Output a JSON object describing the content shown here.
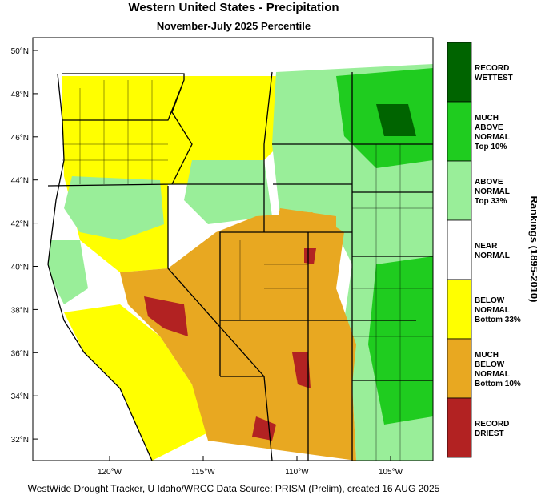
{
  "title": "Western United States - Precipitation",
  "subtitle": "November-July 2025 Percentile",
  "lat_labels": [
    "50°N",
    "48°N",
    "46°N",
    "44°N",
    "42°N",
    "40°N",
    "38°N",
    "36°N",
    "34°N",
    "32°N"
  ],
  "lon_labels": [
    "120°W",
    "115°W",
    "110°W",
    "105°W"
  ],
  "legend": {
    "title": "Rankings (1895-2010)",
    "items": [
      {
        "color": "#006400",
        "label": [
          "RECORD",
          "WETTEST"
        ]
      },
      {
        "color": "#1fcc1f",
        "label": [
          "MUCH",
          "ABOVE",
          "NORMAL",
          "Top 10%"
        ]
      },
      {
        "color": "#99ee99",
        "label": [
          "ABOVE",
          "NORMAL",
          "Top 33%"
        ]
      },
      {
        "color": "#ffffff",
        "label": [
          "NEAR",
          "NORMAL"
        ]
      },
      {
        "color": "#ffff00",
        "label": [
          "BELOW",
          "NORMAL",
          "Bottom 33%"
        ]
      },
      {
        "color": "#e8a821",
        "label": [
          "MUCH",
          "BELOW",
          "NORMAL",
          "Bottom 10%"
        ]
      },
      {
        "color": "#b22222",
        "label": [
          "RECORD",
          "DRIEST"
        ]
      }
    ]
  },
  "footer": "WestWide Drought Tracker, U Idaho/WRCC Data Source: PRISM (Prelim), created 16 AUG 2025"
}
